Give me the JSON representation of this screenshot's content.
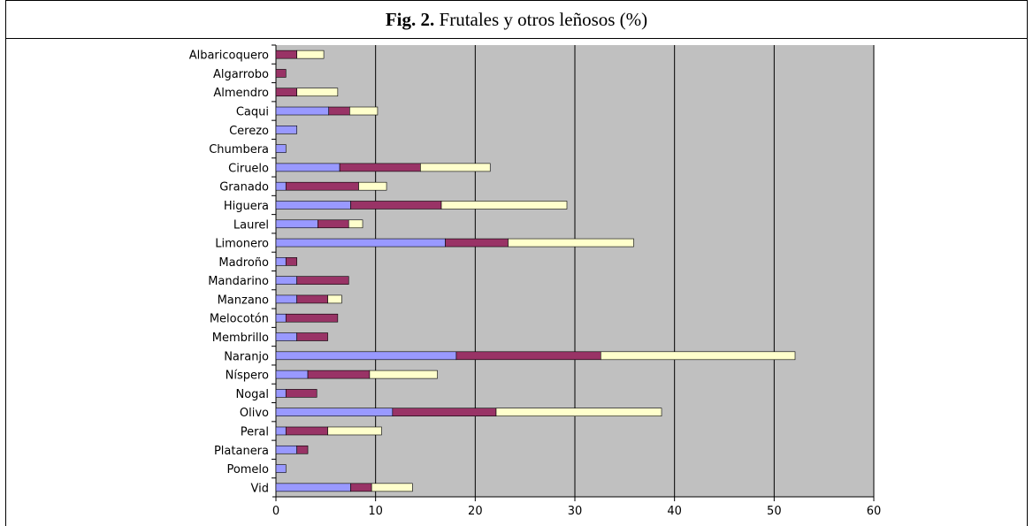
{
  "title": {
    "fig": "Fig. 2.",
    "text": "Frutales y otros leñosos (%)"
  },
  "colors": {
    "plot_bg": "#C0C0C0",
    "series": [
      "#9999FF",
      "#993366",
      "#FFFFCC"
    ]
  },
  "chart_data": {
    "type": "bar",
    "orientation": "horizontal",
    "stacked": true,
    "title": "Frutales y otros leñosos (%)",
    "categories": [
      "Albaricoquero",
      "Algarrobo",
      "Almendro",
      "Caqui",
      "Cerezo",
      "Chumbera",
      "Ciruelo",
      "Granado",
      "Higuera",
      "Laurel",
      "Limonero",
      "Madroño",
      "Mandarino",
      "Manzano",
      "Melocotón",
      "Membrillo",
      "Naranjo",
      "Níspero",
      "Nogal",
      "Olivo",
      "Peral",
      "Platanera",
      "Pomelo",
      "Vid"
    ],
    "series": [
      {
        "values": [
          0,
          0,
          0,
          5.3,
          2.1,
          1.0,
          6.4,
          1.0,
          7.5,
          4.2,
          17.0,
          1.0,
          2.1,
          2.1,
          1.0,
          2.1,
          18.1,
          3.2,
          1.0,
          11.7,
          1.0,
          2.1,
          1.0,
          7.5
        ]
      },
      {
        "values": [
          2.1,
          1.0,
          2.1,
          2.1,
          0,
          0,
          8.1,
          7.3,
          9.1,
          3.1,
          6.3,
          1.1,
          5.2,
          3.1,
          5.2,
          3.1,
          14.5,
          6.2,
          3.1,
          10.4,
          4.2,
          1.1,
          0,
          2.1
        ]
      },
      {
        "values": [
          2.7,
          0,
          4.1,
          2.8,
          0,
          0,
          7.0,
          2.8,
          12.6,
          1.4,
          12.6,
          0,
          0,
          1.4,
          0,
          0,
          19.5,
          6.8,
          0,
          16.6,
          5.4,
          0,
          0,
          4.1
        ]
      }
    ],
    "xlim": [
      0,
      60
    ],
    "xticks": [
      0,
      10,
      20,
      30,
      40,
      50,
      60
    ],
    "grid": "vertical",
    "legend": "none"
  }
}
